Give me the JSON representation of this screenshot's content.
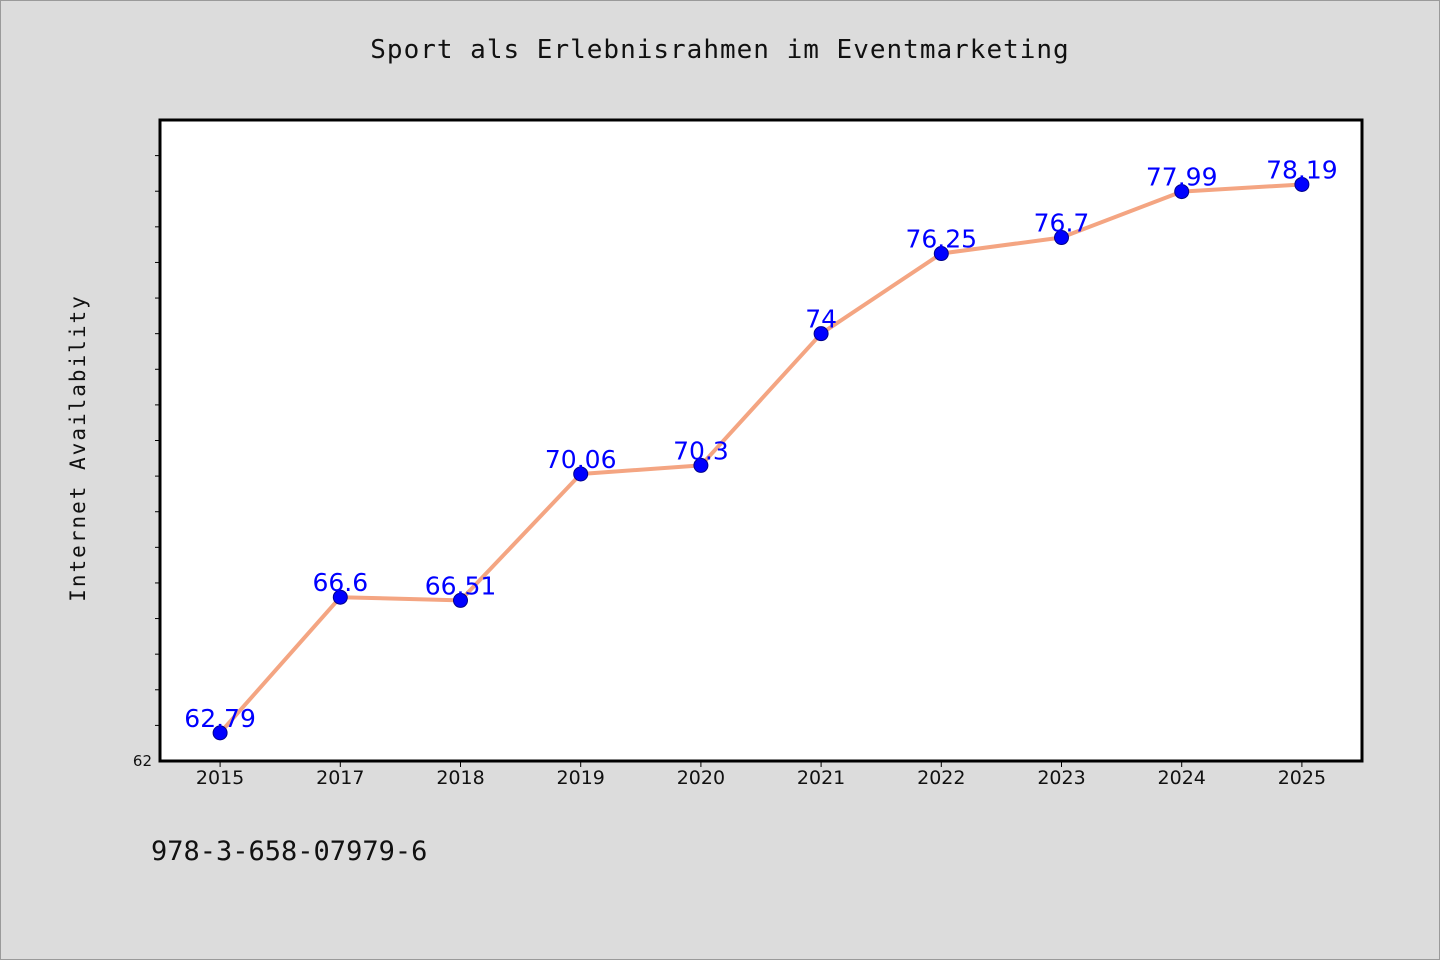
{
  "chart_data": {
    "type": "line",
    "title": "Sport als Erlebnisrahmen im Eventmarketing",
    "xlabel": "",
    "ylabel": "Internet Availability",
    "categories": [
      "2015",
      "2017",
      "2018",
      "2019",
      "2020",
      "2021",
      "2022",
      "2023",
      "2024",
      "2025"
    ],
    "series": [
      {
        "values": [
          62.79,
          66.6,
          66.51,
          70.06,
          70.3,
          74,
          76.25,
          76.7,
          77.99,
          78.19
        ],
        "data_labels": [
          "62.79",
          "66.6",
          "66.51",
          "70.06",
          "70.3",
          "74",
          "76.25",
          "76.7",
          "77.99",
          "78.19"
        ]
      }
    ],
    "ylim": [
      62,
      80
    ],
    "yticks_labeled": [
      "62"
    ],
    "grid": false,
    "legend": "none",
    "colors": {
      "line": "#f4a582",
      "marker": "#0000ff",
      "data_label": "#0000ff",
      "plot_background": "#ffffff",
      "figure_background": "#dcdcdc"
    }
  },
  "footer": {
    "isbn": "978-3-658-07979-6"
  }
}
